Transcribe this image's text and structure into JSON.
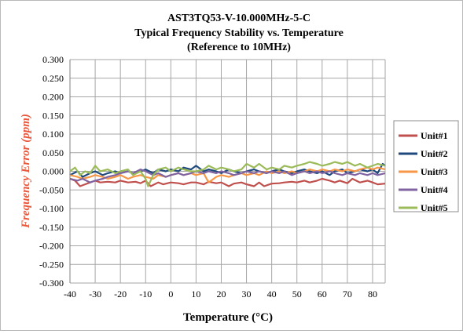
{
  "chart_data": {
    "type": "line",
    "title": "AST3TQ53-V-10.000MHz-5-C",
    "subtitle": "Typical Frequency Stability vs. Temperature",
    "subtitle2": "(Reference  to 10MHz)",
    "xlabel": "Temperature (°C)",
    "ylabel": "Frequency Error (ppm)",
    "xlim": [
      -40,
      85
    ],
    "ylim": [
      -0.3,
      0.3
    ],
    "xticks": [
      -40,
      -30,
      -20,
      -10,
      0,
      10,
      20,
      30,
      40,
      50,
      60,
      70,
      80
    ],
    "xtick_labels": [
      "-40",
      "-30",
      "-20",
      "-10",
      "0",
      "10",
      "20",
      "30",
      "40",
      "50",
      "60",
      "70",
      "80"
    ],
    "yticks": [
      0.3,
      0.25,
      0.2,
      0.15,
      0.1,
      0.05,
      0,
      -0.05,
      -0.1,
      -0.15,
      -0.2,
      -0.25,
      -0.3
    ],
    "ytick_labels": [
      "0.300",
      "0.250",
      "0.200",
      "0.150",
      "0.100",
      "0.050",
      "0.000",
      "-0.050",
      "-0.100",
      "-0.150",
      "-0.200",
      "-0.250",
      "-0.300"
    ],
    "grid": true,
    "legend_position": "right",
    "series": [
      {
        "name": "Unit#1",
        "color": "#c0504d",
        "x": [
          -40,
          -38,
          -36,
          -34,
          -32,
          -30,
          -28,
          -25,
          -22,
          -20,
          -17,
          -14,
          -12,
          -10,
          -8,
          -5,
          -3,
          0,
          3,
          5,
          8,
          10,
          13,
          15,
          18,
          20,
          23,
          25,
          28,
          30,
          33,
          35,
          37,
          40,
          43,
          45,
          48,
          50,
          53,
          55,
          58,
          60,
          63,
          65,
          67,
          70,
          72,
          75,
          78,
          80,
          82,
          85
        ],
        "y": [
          -0.02,
          -0.025,
          -0.04,
          -0.035,
          -0.03,
          -0.025,
          -0.03,
          -0.028,
          -0.03,
          -0.025,
          -0.03,
          -0.028,
          -0.032,
          -0.025,
          -0.04,
          -0.03,
          -0.035,
          -0.03,
          -0.032,
          -0.035,
          -0.03,
          -0.03,
          -0.035,
          -0.028,
          -0.032,
          -0.03,
          -0.04,
          -0.033,
          -0.03,
          -0.035,
          -0.04,
          -0.03,
          -0.04,
          -0.033,
          -0.032,
          -0.03,
          -0.028,
          -0.03,
          -0.025,
          -0.03,
          -0.025,
          -0.02,
          -0.025,
          -0.03,
          -0.025,
          -0.032,
          -0.02,
          -0.03,
          -0.025,
          -0.03,
          -0.035,
          -0.033
        ]
      },
      {
        "name": "Unit#2",
        "color": "#1f497d",
        "x": [
          -40,
          -37,
          -35,
          -32,
          -30,
          -27,
          -25,
          -22,
          -20,
          -17,
          -15,
          -12,
          -10,
          -7,
          -5,
          -2,
          0,
          3,
          5,
          8,
          10,
          13,
          15,
          18,
          20,
          23,
          25,
          28,
          30,
          33,
          35,
          38,
          40,
          43,
          45,
          48,
          50,
          53,
          55,
          58,
          60,
          63,
          65,
          68,
          70,
          73,
          75,
          78,
          80,
          82,
          84,
          85
        ],
        "y": [
          -0.01,
          0.0,
          -0.015,
          -0.005,
          0.0,
          -0.01,
          -0.005,
          0.0,
          -0.005,
          0.0,
          -0.005,
          0.0,
          0.005,
          -0.005,
          0.005,
          0.0,
          0.005,
          0.0,
          0.01,
          0.005,
          0.015,
          0.0,
          0.005,
          0.0,
          -0.005,
          0.005,
          0.0,
          -0.005,
          0.0,
          0.005,
          0.0,
          -0.005,
          0.0,
          0.005,
          0.0,
          -0.005,
          0.0,
          0.005,
          0.0,
          -0.005,
          0.0,
          -0.01,
          0.0,
          0.005,
          -0.005,
          0.0,
          0.005,
          0.0,
          0.005,
          -0.005,
          0.02,
          0.015
        ]
      },
      {
        "name": "Unit#3",
        "color": "#f79646",
        "x": [
          -40,
          -37,
          -35,
          -32,
          -30,
          -27,
          -25,
          -22,
          -20,
          -17,
          -15,
          -12,
          -10,
          -7,
          -5,
          -2,
          0,
          3,
          5,
          8,
          10,
          13,
          15,
          18,
          20,
          23,
          25,
          28,
          30,
          33,
          35,
          38,
          40,
          43,
          45,
          48,
          50,
          53,
          55,
          58,
          60,
          63,
          65,
          68,
          70,
          73,
          75,
          78,
          80,
          82,
          85
        ],
        "y": [
          -0.01,
          -0.015,
          -0.02,
          -0.015,
          -0.01,
          -0.015,
          -0.02,
          -0.015,
          -0.01,
          -0.02,
          -0.015,
          -0.01,
          -0.015,
          -0.02,
          -0.01,
          -0.015,
          -0.01,
          -0.005,
          -0.01,
          -0.005,
          -0.01,
          -0.005,
          -0.03,
          -0.015,
          -0.01,
          -0.015,
          -0.01,
          -0.005,
          -0.01,
          -0.005,
          -0.01,
          0.0,
          -0.005,
          0.0,
          -0.005,
          0.0,
          -0.005,
          0.0,
          0.005,
          0.0,
          0.005,
          0.0,
          0.005,
          0.0,
          0.005,
          0.0,
          0.005,
          0.01,
          0.005,
          0.01,
          0.005
        ]
      },
      {
        "name": "Unit#4",
        "color": "#8064a2",
        "x": [
          -40,
          -37,
          -35,
          -32,
          -30,
          -27,
          -25,
          -22,
          -20,
          -17,
          -15,
          -12,
          -10,
          -7,
          -5,
          -2,
          0,
          3,
          5,
          8,
          10,
          13,
          15,
          18,
          20,
          23,
          25,
          28,
          30,
          33,
          35,
          38,
          40,
          43,
          45,
          48,
          50,
          53,
          55,
          58,
          60,
          63,
          65,
          68,
          70,
          73,
          75,
          78,
          80,
          82,
          85
        ],
        "y": [
          -0.02,
          -0.025,
          -0.02,
          -0.03,
          -0.025,
          -0.02,
          -0.015,
          -0.01,
          -0.005,
          0.0,
          -0.005,
          0.005,
          0.0,
          -0.01,
          -0.005,
          -0.015,
          -0.01,
          -0.005,
          -0.01,
          -0.005,
          0.0,
          -0.005,
          0.0,
          -0.005,
          0.0,
          -0.005,
          -0.01,
          -0.005,
          0.0,
          -0.005,
          0.0,
          -0.005,
          0.0,
          -0.005,
          0.0,
          -0.01,
          -0.005,
          0.0,
          -0.005,
          0.0,
          -0.005,
          0.0,
          -0.005,
          -0.01,
          -0.005,
          -0.01,
          -0.005,
          -0.01,
          -0.005,
          -0.01,
          -0.005
        ]
      },
      {
        "name": "Unit#5",
        "color": "#9bbb59",
        "x": [
          -40,
          -38,
          -36,
          -34,
          -32,
          -30,
          -28,
          -25,
          -22,
          -20,
          -17,
          -15,
          -12,
          -10,
          -9,
          -7,
          -5,
          -2,
          0,
          3,
          5,
          8,
          10,
          13,
          15,
          18,
          20,
          23,
          25,
          28,
          30,
          33,
          35,
          38,
          40,
          43,
          45,
          48,
          50,
          53,
          55,
          58,
          60,
          63,
          65,
          68,
          70,
          73,
          75,
          78,
          80,
          82,
          85
        ],
        "y": [
          0.0,
          0.01,
          -0.01,
          0.0,
          -0.005,
          0.015,
          0.0,
          0.005,
          -0.005,
          0.0,
          0.005,
          -0.01,
          0.0,
          -0.02,
          -0.04,
          -0.01,
          0.005,
          0.01,
          0.0,
          0.01,
          0.005,
          0.0,
          0.0,
          0.005,
          0.015,
          0.005,
          0.01,
          0.005,
          0.0,
          0.005,
          0.02,
          0.01,
          0.02,
          0.005,
          0.01,
          0.005,
          0.015,
          0.01,
          0.015,
          0.02,
          0.025,
          0.02,
          0.015,
          0.02,
          0.025,
          0.02,
          0.025,
          0.015,
          0.02,
          0.01,
          0.015,
          0.02,
          0.015
        ]
      }
    ]
  }
}
